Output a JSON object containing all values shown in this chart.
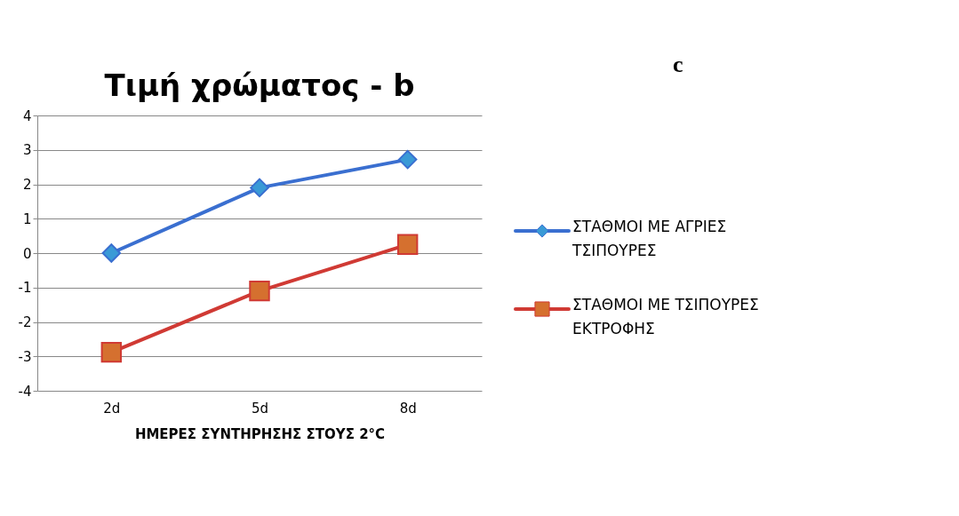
{
  "chart_data": {
    "type": "line",
    "title": "Τιμή χρώματος - b",
    "xlabel": "ΗΜΕΡΕΣ ΣΥΝΤΗΡΗΣΗΣ ΣΤΟΥΣ 2°C",
    "categories": [
      "2d",
      "5d",
      "8d"
    ],
    "series": [
      {
        "name": "ΣΤΑΘΜΟΙ ΜΕ ΑΓΡΙΕΣ ΤΣΙΠΟΥΡΕΣ",
        "color": "#3a6fd0",
        "marker": "diamond",
        "values": [
          0,
          1.9,
          2.72
        ]
      },
      {
        "name": "ΣΤΑΘΜΟΙ ΜΕ ΤΣΙΠΟΥΡΕΣ ΕΚΤΡΟΦΗΣ",
        "color": "#d03a34",
        "marker": "square",
        "values": [
          -2.88,
          -1.1,
          0.25
        ]
      }
    ],
    "ylim": [
      -4,
      4
    ],
    "yticks": [
      -4,
      -3,
      -2,
      -1,
      0,
      1,
      2,
      3,
      4
    ],
    "grid": "y",
    "legend": "right",
    "annotations": [
      "c"
    ]
  }
}
